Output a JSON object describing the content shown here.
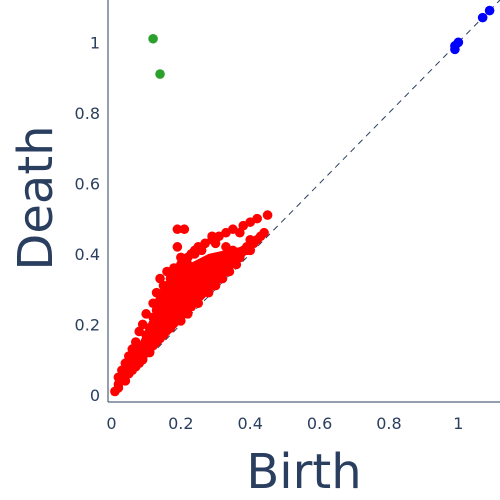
{
  "chart_data": {
    "type": "scatter",
    "title": "",
    "xlabel": "Birth",
    "ylabel": "Death",
    "xlim": [
      -0.01,
      1.12
    ],
    "ylim": [
      -0.02,
      1.12
    ],
    "x_ticks": [
      0,
      0.2,
      0.4,
      0.6,
      0.8,
      1
    ],
    "x_tick_labels": [
      "0",
      "0.2",
      "0.4",
      "0.6",
      "0.8",
      "1"
    ],
    "y_ticks": [
      0,
      0.2,
      0.4,
      0.6,
      0.8,
      1
    ],
    "y_tick_labels": [
      "0",
      "0.2",
      "0.4",
      "0.6",
      "0.8",
      "1"
    ],
    "grid": false,
    "diagonal": {
      "from": 0,
      "to": 1.12,
      "style": "dashed",
      "color": "#2a3f5f"
    },
    "series": [
      {
        "color": "#ff0000",
        "points": [
          [
            0.02,
            0.03
          ],
          [
            0.03,
            0.05
          ],
          [
            0.04,
            0.06
          ],
          [
            0.05,
            0.08
          ],
          [
            0.06,
            0.09
          ],
          [
            0.07,
            0.11
          ],
          [
            0.08,
            0.13
          ],
          [
            0.09,
            0.14
          ],
          [
            0.1,
            0.17
          ],
          [
            0.11,
            0.19
          ],
          [
            0.12,
            0.22
          ],
          [
            0.13,
            0.24
          ],
          [
            0.14,
            0.27
          ],
          [
            0.15,
            0.29
          ],
          [
            0.16,
            0.31
          ],
          [
            0.17,
            0.33
          ],
          [
            0.18,
            0.35
          ],
          [
            0.19,
            0.36
          ],
          [
            0.2,
            0.37
          ],
          [
            0.21,
            0.38
          ],
          [
            0.22,
            0.39
          ],
          [
            0.23,
            0.4
          ],
          [
            0.24,
            0.41
          ],
          [
            0.25,
            0.42
          ],
          [
            0.27,
            0.43
          ],
          [
            0.29,
            0.44
          ],
          [
            0.31,
            0.45
          ],
          [
            0.33,
            0.46
          ],
          [
            0.35,
            0.47
          ],
          [
            0.38,
            0.48
          ],
          [
            0.4,
            0.49
          ],
          [
            0.42,
            0.5
          ],
          [
            0.14,
            0.33
          ],
          [
            0.16,
            0.35
          ],
          [
            0.18,
            0.36
          ],
          [
            0.19,
            0.42
          ],
          [
            0.19,
            0.47
          ],
          [
            0.21,
            0.47
          ],
          [
            0.2,
            0.39
          ],
          [
            0.29,
            0.45
          ],
          [
            0.3,
            0.43
          ],
          [
            0.33,
            0.42
          ],
          [
            0.37,
            0.46
          ],
          [
            0.4,
            0.44
          ],
          [
            0.45,
            0.51
          ],
          [
            0.26,
            0.41
          ],
          [
            0.24,
            0.4
          ],
          [
            0.22,
            0.37
          ],
          [
            0.12,
            0.26
          ],
          [
            0.1,
            0.23
          ],
          [
            0.09,
            0.2
          ],
          [
            0.08,
            0.18
          ],
          [
            0.07,
            0.15
          ],
          [
            0.06,
            0.13
          ],
          [
            0.05,
            0.11
          ],
          [
            0.04,
            0.09
          ],
          [
            0.03,
            0.07
          ],
          [
            0.02,
            0.05
          ],
          [
            0.13,
            0.29
          ],
          [
            0.15,
            0.31
          ],
          [
            0.17,
            0.3
          ],
          [
            0.16,
            0.27
          ],
          [
            0.11,
            0.16
          ],
          [
            0.12,
            0.2
          ],
          [
            0.14,
            0.22
          ],
          [
            0.18,
            0.28
          ],
          [
            0.2,
            0.3
          ],
          [
            0.22,
            0.32
          ],
          [
            0.25,
            0.35
          ],
          [
            0.28,
            0.37
          ],
          [
            0.3,
            0.36
          ],
          [
            0.32,
            0.39
          ],
          [
            0.35,
            0.41
          ],
          [
            0.36,
            0.4
          ],
          [
            0.23,
            0.28
          ],
          [
            0.27,
            0.32
          ],
          [
            0.31,
            0.35
          ],
          [
            0.34,
            0.37
          ],
          [
            0.38,
            0.41
          ],
          [
            0.41,
            0.43
          ],
          [
            0.1,
            0.12
          ],
          [
            0.13,
            0.15
          ],
          [
            0.16,
            0.19
          ],
          [
            0.19,
            0.22
          ],
          [
            0.21,
            0.24
          ],
          [
            0.24,
            0.27
          ],
          [
            0.26,
            0.29
          ],
          [
            0.29,
            0.31
          ],
          [
            0.33,
            0.35
          ],
          [
            0.37,
            0.39
          ],
          [
            0.39,
            0.41
          ],
          [
            0.43,
            0.45
          ],
          [
            0.01,
            0.01
          ],
          [
            0.02,
            0.02
          ],
          [
            0.04,
            0.04
          ],
          [
            0.06,
            0.07
          ],
          [
            0.08,
            0.09
          ],
          [
            0.09,
            0.1
          ],
          [
            0.11,
            0.12
          ],
          [
            0.15,
            0.17
          ],
          [
            0.17,
            0.19
          ],
          [
            0.2,
            0.21
          ],
          [
            0.22,
            0.23
          ],
          [
            0.25,
            0.26
          ],
          [
            0.28,
            0.29
          ],
          [
            0.3,
            0.31
          ],
          [
            0.32,
            0.33
          ],
          [
            0.34,
            0.35
          ],
          [
            0.36,
            0.37
          ],
          [
            0.4,
            0.41
          ],
          [
            0.05,
            0.06
          ],
          [
            0.07,
            0.08
          ],
          [
            0.12,
            0.14
          ],
          [
            0.14,
            0.16
          ],
          [
            0.18,
            0.21
          ],
          [
            0.23,
            0.25
          ],
          [
            0.27,
            0.3
          ],
          [
            0.31,
            0.33
          ],
          [
            0.35,
            0.38
          ],
          [
            0.39,
            0.42
          ],
          [
            0.42,
            0.44
          ],
          [
            0.44,
            0.46
          ]
        ]
      },
      {
        "color": "#2ca02c",
        "points": [
          [
            0.12,
            1.01
          ],
          [
            0.14,
            0.91
          ]
        ]
      },
      {
        "color": "#0000ff",
        "points": [
          [
            0.99,
            0.99
          ],
          [
            1.0,
            1.0
          ],
          [
            0.99,
            0.98
          ],
          [
            1.07,
            1.07
          ],
          [
            1.09,
            1.09
          ]
        ]
      }
    ]
  }
}
